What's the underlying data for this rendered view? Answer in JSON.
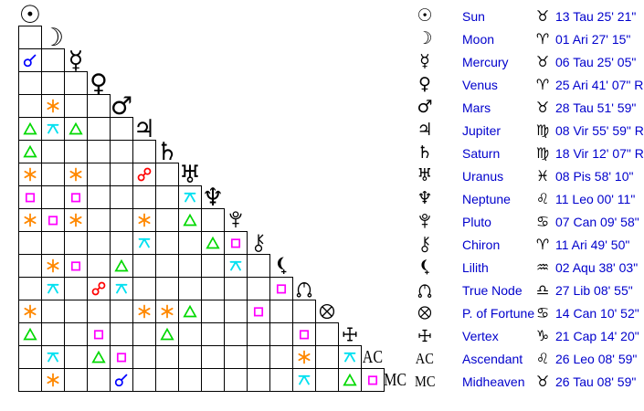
{
  "colors": {
    "background": "#ffffff",
    "grid_line": "#000000",
    "glyph_black": "#000000",
    "table_text_blue": "#0000cc",
    "aspects": {
      "conjunction": "#0000ff",
      "sextile": "#ff8800",
      "square": "#ff00ff",
      "trine": "#00d800",
      "opposition": "#ff0000",
      "quincunx": "#00e0f0"
    }
  },
  "aspect_grid": {
    "rows": [
      {
        "planet": "Sun",
        "symbol": {
          "kind": "char",
          "char": "☉"
        },
        "aspects": []
      },
      {
        "planet": "Moon",
        "symbol": {
          "kind": "char",
          "char": "☽"
        },
        "aspects": [
          ""
        ]
      },
      {
        "planet": "Mercury",
        "symbol": {
          "kind": "char",
          "char": "☿"
        },
        "aspects": [
          "conjunction",
          ""
        ]
      },
      {
        "planet": "Venus",
        "symbol": {
          "kind": "char",
          "char": "♀"
        },
        "aspects": [
          "",
          "",
          ""
        ]
      },
      {
        "planet": "Mars",
        "symbol": {
          "kind": "char",
          "char": "♂"
        },
        "aspects": [
          "",
          "sextile",
          "",
          ""
        ]
      },
      {
        "planet": "Jupiter",
        "symbol": {
          "kind": "char",
          "char": "♃"
        },
        "aspects": [
          "trine",
          "quincunx",
          "trine",
          "",
          ""
        ]
      },
      {
        "planet": "Saturn",
        "symbol": {
          "kind": "char",
          "char": "♄"
        },
        "aspects": [
          "trine",
          "",
          "",
          "",
          "",
          ""
        ]
      },
      {
        "planet": "Uranus",
        "symbol": {
          "kind": "char",
          "char": "♅"
        },
        "aspects": [
          "sextile",
          "",
          "sextile",
          "",
          "",
          "opposition",
          ""
        ]
      },
      {
        "planet": "Neptune",
        "symbol": {
          "kind": "char",
          "char": "♆"
        },
        "aspects": [
          "square",
          "",
          "square",
          "",
          "",
          "",
          "",
          "quincunx"
        ]
      },
      {
        "planet": "Pluto",
        "symbol": {
          "kind": "svg",
          "svg": "pluto"
        },
        "aspects": [
          "sextile",
          "square",
          "sextile",
          "",
          "",
          "sextile",
          "",
          "trine",
          ""
        ]
      },
      {
        "planet": "Chiron",
        "symbol": {
          "kind": "svg",
          "svg": "chiron"
        },
        "aspects": [
          "",
          "",
          "",
          "",
          "",
          "quincunx",
          "",
          "",
          "trine",
          "square"
        ]
      },
      {
        "planet": "Lilith",
        "symbol": {
          "kind": "svg",
          "svg": "lilith"
        },
        "aspects": [
          "",
          "sextile",
          "square",
          "",
          "trine",
          "",
          "",
          "",
          "",
          "quincunx",
          ""
        ]
      },
      {
        "planet": "True Node",
        "symbol": {
          "kind": "svg",
          "svg": "truenode"
        },
        "aspects": [
          "",
          "quincunx",
          "",
          "opposition",
          "quincunx",
          "",
          "",
          "",
          "",
          "",
          "",
          "square"
        ]
      },
      {
        "planet": "P. of Fortune",
        "symbol": {
          "kind": "svg",
          "svg": "fortune"
        },
        "aspects": [
          "sextile",
          "",
          "",
          "",
          "",
          "sextile",
          "sextile",
          "trine",
          "",
          "",
          "square",
          "",
          ""
        ]
      },
      {
        "planet": "Vertex",
        "symbol": {
          "kind": "svg",
          "svg": "vertex"
        },
        "aspects": [
          "trine",
          "",
          "",
          "square",
          "",
          "",
          "trine",
          "",
          "",
          "",
          "",
          "",
          "square",
          ""
        ]
      },
      {
        "planet": "Ascendant",
        "symbol": {
          "kind": "text",
          "text": "AC"
        },
        "aspects": [
          "",
          "quincunx",
          "",
          "trine",
          "square",
          "",
          "",
          "",
          "",
          "",
          "",
          "",
          "sextile",
          "",
          "quincunx"
        ]
      },
      {
        "planet": "Midheaven",
        "symbol": {
          "kind": "text",
          "text": "MC"
        },
        "aspects": [
          "",
          "sextile",
          "",
          "",
          "conjunction",
          "",
          "",
          "",
          "",
          "",
          "",
          "",
          "quincunx",
          "",
          "trine",
          "square"
        ]
      }
    ]
  },
  "planet_table": {
    "rows": [
      {
        "name": "Sun",
        "symbol": {
          "kind": "char",
          "char": "☉"
        },
        "sign": "♉",
        "position": "13 Tau 25' 21\""
      },
      {
        "name": "Moon",
        "symbol": {
          "kind": "char",
          "char": "☽"
        },
        "sign": "♈",
        "position": "01 Ari 27' 15\""
      },
      {
        "name": "Mercury",
        "symbol": {
          "kind": "char",
          "char": "☿"
        },
        "sign": "♉",
        "position": "06 Tau 25' 05\""
      },
      {
        "name": "Venus",
        "symbol": {
          "kind": "char",
          "char": "♀"
        },
        "sign": "♈",
        "position": "25 Ari 41' 07\" R"
      },
      {
        "name": "Mars",
        "symbol": {
          "kind": "char",
          "char": "♂"
        },
        "sign": "♉",
        "position": "28 Tau 51' 59\""
      },
      {
        "name": "Jupiter",
        "symbol": {
          "kind": "char",
          "char": "♃"
        },
        "sign": "♍",
        "position": "08 Vir 55' 59\" R"
      },
      {
        "name": "Saturn",
        "symbol": {
          "kind": "char",
          "char": "♄"
        },
        "sign": "♍",
        "position": "18 Vir 12' 07\" R"
      },
      {
        "name": "Uranus",
        "symbol": {
          "kind": "char",
          "char": "♅"
        },
        "sign": "♓",
        "position": "08 Pis 58' 10\""
      },
      {
        "name": "Neptune",
        "symbol": {
          "kind": "char",
          "char": "♆"
        },
        "sign": "♌",
        "position": "11 Leo 00' 11\""
      },
      {
        "name": "Pluto",
        "symbol": {
          "kind": "svg",
          "svg": "pluto"
        },
        "sign": "♋",
        "position": "07 Can 09' 58\""
      },
      {
        "name": "Chiron",
        "symbol": {
          "kind": "svg",
          "svg": "chiron"
        },
        "sign": "♈",
        "position": "11 Ari 49' 50\""
      },
      {
        "name": "Lilith",
        "symbol": {
          "kind": "svg",
          "svg": "lilith"
        },
        "sign": "♒",
        "position": "02 Aqu 38' 03\""
      },
      {
        "name": "True Node",
        "symbol": {
          "kind": "svg",
          "svg": "truenode"
        },
        "sign": "♎",
        "position": "27 Lib 08' 55\""
      },
      {
        "name": "P. of Fortune",
        "symbol": {
          "kind": "svg",
          "svg": "fortune"
        },
        "sign": "♋",
        "position": "14 Can 10' 52\""
      },
      {
        "name": "Vertex",
        "symbol": {
          "kind": "svg",
          "svg": "vertex"
        },
        "sign": "♑",
        "position": "21 Cap 14' 20\""
      },
      {
        "name": "Ascendant",
        "symbol": {
          "kind": "text",
          "text": "AC"
        },
        "sign": "♌",
        "position": "26 Leo 08' 59\""
      },
      {
        "name": "Midheaven",
        "symbol": {
          "kind": "text",
          "text": "MC"
        },
        "sign": "♉",
        "position": "26 Tau 08' 59\""
      }
    ]
  },
  "chart_data": {
    "type": "table",
    "title": "Natal planetary positions with aspectarian grid",
    "columns": [
      "Point",
      "Position"
    ],
    "rows": [
      [
        "Sun",
        "13 Tau 25' 21\""
      ],
      [
        "Moon",
        "01 Ari 27' 15\""
      ],
      [
        "Mercury",
        "06 Tau 25' 05\""
      ],
      [
        "Venus",
        "25 Ari 41' 07\" R"
      ],
      [
        "Mars",
        "28 Tau 51' 59\""
      ],
      [
        "Jupiter",
        "08 Vir 55' 59\" R"
      ],
      [
        "Saturn",
        "18 Vir 12' 07\" R"
      ],
      [
        "Uranus",
        "08 Pis 58' 10\""
      ],
      [
        "Neptune",
        "11 Leo 00' 11\""
      ],
      [
        "Pluto",
        "07 Can 09' 58\""
      ],
      [
        "Chiron",
        "11 Ari 49' 50\""
      ],
      [
        "Lilith",
        "02 Aqu 38' 03\""
      ],
      [
        "True Node",
        "27 Lib 08' 55\""
      ],
      [
        "P. of Fortune",
        "14 Can 10' 52\""
      ],
      [
        "Vertex",
        "21 Cap 14' 20\""
      ],
      [
        "Ascendant",
        "26 Leo 08' 59\""
      ],
      [
        "Midheaven",
        "26 Tau 08' 59\""
      ]
    ],
    "aspects": [
      "Mercury conjunction Sun",
      "Mars sextile Moon",
      "Jupiter trine Sun",
      "Jupiter quincunx Moon",
      "Jupiter trine Mercury",
      "Saturn trine Sun",
      "Uranus sextile Sun",
      "Uranus sextile Mercury",
      "Uranus opposition Jupiter",
      "Neptune square Sun",
      "Neptune square Mercury",
      "Neptune quincunx Uranus",
      "Pluto sextile Sun",
      "Pluto square Moon",
      "Pluto sextile Mercury",
      "Pluto sextile Jupiter",
      "Pluto trine Uranus",
      "Chiron quincunx Jupiter",
      "Chiron trine Neptune",
      "Chiron square Pluto",
      "Lilith sextile Moon",
      "Lilith square Mercury",
      "Lilith trine Mars",
      "Lilith quincunx Pluto",
      "True Node quincunx Moon",
      "True Node opposition Venus",
      "True Node quincunx Mars",
      "True Node square Lilith",
      "P. of Fortune sextile Sun",
      "P. of Fortune sextile Jupiter",
      "P. of Fortune sextile Saturn",
      "P. of Fortune trine Uranus",
      "P. of Fortune square Chiron",
      "Vertex trine Sun",
      "Vertex square Venus",
      "Vertex trine Saturn",
      "Vertex square True Node",
      "Ascendant quincunx Moon",
      "Ascendant trine Venus",
      "Ascendant square Mars",
      "Ascendant sextile True Node",
      "Ascendant quincunx Vertex",
      "Midheaven sextile Moon",
      "Midheaven conjunction Mars",
      "Midheaven quincunx True Node",
      "Midheaven trine Vertex",
      "Midheaven square Ascendant"
    ]
  }
}
